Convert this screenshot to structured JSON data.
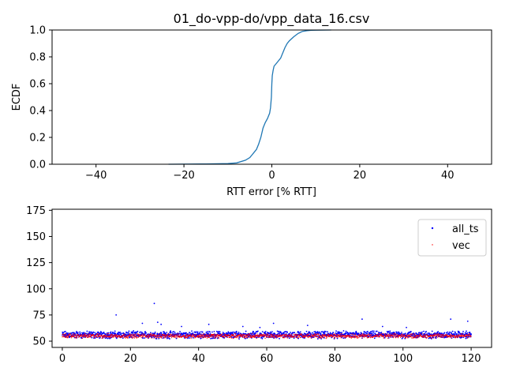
{
  "chart_data": [
    {
      "type": "line",
      "title": "01_do-vpp-do/vpp_data_16.csv",
      "xlabel": "RTT error [% RTT]",
      "ylabel": "ECDF",
      "xlim": [
        -50,
        50
      ],
      "ylim": [
        0.0,
        1.0
      ],
      "xticks": [
        "−40",
        "−20",
        "0",
        "20",
        "40"
      ],
      "xtick_values": [
        -40,
        -20,
        0,
        20,
        40
      ],
      "yticks": [
        "0.0",
        "0.2",
        "0.4",
        "0.6",
        "0.8",
        "1.0"
      ],
      "ytick_values": [
        0.0,
        0.2,
        0.4,
        0.6,
        0.8,
        1.0
      ],
      "grid": false,
      "series": [
        {
          "color": "#1f77b4",
          "x": [
            -23.5,
            -15,
            -10,
            -8,
            -6,
            -5,
            -4.5,
            -4,
            -3.5,
            -3,
            -2.5,
            -2,
            -1.5,
            -1,
            -0.5,
            -0.3,
            -0.1,
            0,
            0.1,
            0.3,
            0.5,
            1,
            2,
            2.5,
            3,
            3.5,
            4,
            5,
            6,
            7,
            8,
            9,
            10,
            13.5
          ],
          "y": [
            0.0,
            0.002,
            0.005,
            0.01,
            0.03,
            0.05,
            0.07,
            0.09,
            0.11,
            0.15,
            0.2,
            0.27,
            0.31,
            0.34,
            0.38,
            0.42,
            0.5,
            0.6,
            0.66,
            0.7,
            0.73,
            0.75,
            0.79,
            0.83,
            0.87,
            0.9,
            0.92,
            0.95,
            0.975,
            0.99,
            0.995,
            0.998,
            0.999,
            1.0
          ]
        }
      ]
    },
    {
      "type": "scatter",
      "title": "",
      "xlabel": "",
      "ylabel": "",
      "xlim": [
        -3,
        126
      ],
      "ylim": [
        44,
        176
      ],
      "xticks": [
        "0",
        "20",
        "40",
        "60",
        "80",
        "100",
        "120"
      ],
      "xtick_values": [
        0,
        20,
        40,
        60,
        80,
        100,
        120
      ],
      "yticks": [
        "50",
        "75",
        "100",
        "125",
        "150",
        "175"
      ],
      "ytick_values": [
        50,
        75,
        100,
        125,
        150,
        175
      ],
      "grid": false,
      "legend": {
        "position": "top-right"
      },
      "series": [
        {
          "name": "all_ts",
          "color": "#0000ff",
          "x_range": [
            0,
            120
          ],
          "band": [
            52,
            60
          ],
          "outliers": [
            {
              "x": 15.8,
              "y": 75
            },
            {
              "x": 27,
              "y": 86
            },
            {
              "x": 23.5,
              "y": 67
            },
            {
              "x": 28,
              "y": 68
            },
            {
              "x": 29,
              "y": 66
            },
            {
              "x": 35,
              "y": 64
            },
            {
              "x": 43,
              "y": 66
            },
            {
              "x": 62,
              "y": 67
            },
            {
              "x": 53,
              "y": 64
            },
            {
              "x": 72,
              "y": 65
            },
            {
              "x": 88,
              "y": 71
            },
            {
              "x": 94,
              "y": 64
            },
            {
              "x": 114,
              "y": 71
            },
            {
              "x": 119,
              "y": 69
            },
            {
              "x": 58,
              "y": 63
            },
            {
              "x": 101,
              "y": 63
            }
          ]
        },
        {
          "name": "vec",
          "color": "#ff0000",
          "x_range": [
            0,
            120
          ],
          "band": [
            52.5,
            57.5
          ],
          "outliers": []
        }
      ]
    }
  ]
}
